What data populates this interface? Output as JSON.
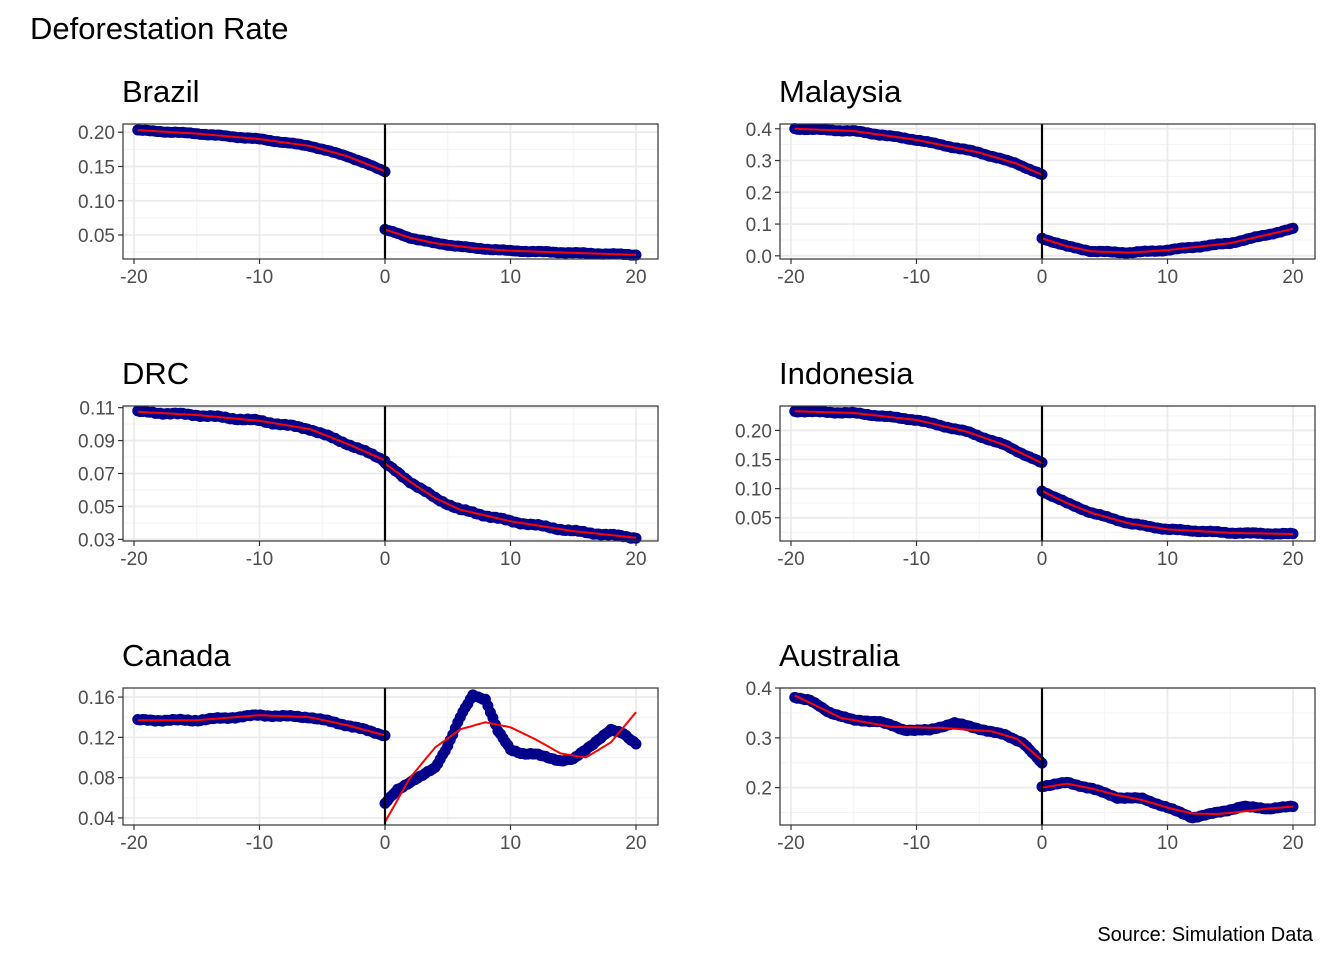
{
  "figure": {
    "title": "Deforestation Rate",
    "caption": "Source: Simulation Data"
  },
  "colors": {
    "points": "#00008b",
    "fit": "#ff0000",
    "cutoff": "#000000",
    "grid": "#ebebeb",
    "border": "#333333",
    "tick_text": "#4d4d4d"
  },
  "chart_data": [
    {
      "type": "scatter",
      "title": "Brazil",
      "xlim": [
        -20,
        20
      ],
      "ylim": [
        0.015,
        0.212
      ],
      "xticks": [
        -20,
        -10,
        0,
        10,
        20
      ],
      "xtick_labels": [
        "-20",
        "-10",
        "0",
        "10",
        "20"
      ],
      "yticks": [
        0.05,
        0.1,
        0.15,
        0.2
      ],
      "ytick_labels": [
        "0.05",
        "0.10",
        "0.15",
        "0.20"
      ],
      "cutoff": 0,
      "left_curve": {
        "x": [
          -19.7,
          -15,
          -10,
          -6,
          -3,
          0
        ],
        "y": [
          0.203,
          0.198,
          0.19,
          0.18,
          0.165,
          0.143
        ]
      },
      "right_curve": {
        "x": [
          0,
          2,
          4,
          7,
          10,
          15,
          20
        ],
        "y": [
          0.058,
          0.046,
          0.038,
          0.031,
          0.027,
          0.024,
          0.021
        ]
      },
      "noise": 0.0008
    },
    {
      "type": "scatter",
      "title": "Malaysia",
      "xlim": [
        -20,
        20
      ],
      "ylim": [
        -0.01,
        0.415
      ],
      "xticks": [
        -20,
        -10,
        0,
        10,
        20
      ],
      "xtick_labels": [
        "-20",
        "-10",
        "0",
        "10",
        "20"
      ],
      "yticks": [
        0.0,
        0.1,
        0.2,
        0.3,
        0.4
      ],
      "ytick_labels": [
        "0.0",
        "0.1",
        "0.2",
        "0.3",
        "0.4"
      ],
      "cutoff": 0,
      "left_curve": {
        "x": [
          -19.7,
          -15,
          -10,
          -5,
          -2,
          0
        ],
        "y": [
          0.4,
          0.393,
          0.365,
          0.325,
          0.29,
          0.255
        ]
      },
      "right_curve": {
        "x": [
          0,
          2,
          4,
          7,
          10,
          15,
          20
        ],
        "y": [
          0.055,
          0.03,
          0.014,
          0.01,
          0.018,
          0.04,
          0.085
        ]
      },
      "noise": 0.002
    },
    {
      "type": "scatter",
      "title": "DRC",
      "xlim": [
        -20,
        20
      ],
      "ylim": [
        0.029,
        0.111
      ],
      "xticks": [
        -20,
        -10,
        0,
        10,
        20
      ],
      "xtick_labels": [
        "-20",
        "-10",
        "0",
        "10",
        "20"
      ],
      "yticks": [
        0.03,
        0.05,
        0.07,
        0.09,
        0.11
      ],
      "ytick_labels": [
        "0.03",
        "0.05",
        "0.07",
        "0.09",
        "0.11"
      ],
      "cutoff": 0,
      "left_curve": {
        "x": [
          -19.7,
          -15,
          -10,
          -6,
          -3,
          0
        ],
        "y": [
          0.1075,
          0.1055,
          0.102,
          0.097,
          0.088,
          0.078
        ]
      },
      "right_curve": {
        "x": [
          0,
          2,
          4,
          6,
          10,
          15,
          20
        ],
        "y": [
          0.076,
          0.065,
          0.055,
          0.048,
          0.041,
          0.035,
          0.031
        ]
      },
      "noise": 0.0007
    },
    {
      "type": "scatter",
      "title": "Indonesia",
      "xlim": [
        -20,
        20
      ],
      "ylim": [
        0.01,
        0.242
      ],
      "xticks": [
        -20,
        -10,
        0,
        10,
        20
      ],
      "xtick_labels": [
        "-20",
        "-10",
        "0",
        "10",
        "20"
      ],
      "yticks": [
        0.05,
        0.1,
        0.15,
        0.2
      ],
      "ytick_labels": [
        "0.05",
        "0.10",
        "0.15",
        "0.20"
      ],
      "cutoff": 0,
      "left_curve": {
        "x": [
          -19.7,
          -15,
          -10,
          -6,
          -3,
          0
        ],
        "y": [
          0.233,
          0.23,
          0.218,
          0.198,
          0.175,
          0.144
        ]
      },
      "right_curve": {
        "x": [
          0,
          2,
          4,
          7,
          10,
          15,
          20
        ],
        "y": [
          0.096,
          0.075,
          0.058,
          0.04,
          0.03,
          0.024,
          0.022
        ]
      },
      "noise": 0.0012
    },
    {
      "type": "scatter",
      "title": "Canada",
      "xlim": [
        -20,
        20
      ],
      "ylim": [
        0.033,
        0.169
      ],
      "xticks": [
        -20,
        -10,
        0,
        10,
        20
      ],
      "xtick_labels": [
        "-20",
        "-10",
        "0",
        "10",
        "20"
      ],
      "yticks": [
        0.04,
        0.08,
        0.12,
        0.16
      ],
      "ytick_labels": [
        "0.04",
        "0.08",
        "0.12",
        "0.16"
      ],
      "cutoff": 0,
      "left_curve": {
        "x": [
          -19.7,
          -15,
          -10,
          -6,
          -3,
          0
        ],
        "y": [
          0.137,
          0.137,
          0.142,
          0.14,
          0.132,
          0.122
        ]
      },
      "right_points": {
        "x": [
          0,
          1,
          2,
          3,
          4,
          5,
          6,
          7,
          8,
          9,
          10,
          11,
          12,
          13,
          14,
          15,
          16,
          17,
          18,
          19,
          20
        ],
        "y": [
          0.054,
          0.068,
          0.076,
          0.082,
          0.09,
          0.112,
          0.14,
          0.162,
          0.158,
          0.126,
          0.108,
          0.104,
          0.103,
          0.1,
          0.097,
          0.098,
          0.108,
          0.118,
          0.127,
          0.124,
          0.114
        ]
      },
      "right_fit": {
        "x": [
          0,
          2,
          4,
          6,
          8,
          10,
          12,
          14,
          16,
          18,
          20
        ],
        "y": [
          0.036,
          0.08,
          0.11,
          0.128,
          0.135,
          0.13,
          0.118,
          0.104,
          0.1,
          0.115,
          0.145
        ]
      },
      "noise": 0.001
    },
    {
      "type": "scatter",
      "title": "Australia",
      "xlim": [
        -20,
        20
      ],
      "ylim": [
        0.125,
        0.4
      ],
      "xticks": [
        -20,
        -10,
        0,
        10,
        20
      ],
      "xtick_labels": [
        "-20",
        "-10",
        "0",
        "10",
        "20"
      ],
      "yticks": [
        0.2,
        0.3,
        0.4
      ],
      "ytick_labels": [
        "0.2",
        "0.3",
        "0.4"
      ],
      "cutoff": 0,
      "left_points": {
        "x": [
          -19.7,
          -18.5,
          -17,
          -15,
          -13,
          -11,
          -9,
          -7,
          -5,
          -3,
          -1.5,
          0
        ],
        "y": [
          0.382,
          0.375,
          0.352,
          0.335,
          0.333,
          0.316,
          0.315,
          0.33,
          0.318,
          0.306,
          0.29,
          0.248
        ]
      },
      "left_fit": {
        "x": [
          -19.7,
          -16,
          -12,
          -8,
          -4,
          -2,
          0
        ],
        "y": [
          0.385,
          0.34,
          0.322,
          0.32,
          0.313,
          0.298,
          0.255
        ]
      },
      "right_points": {
        "x": [
          0,
          2,
          4,
          6,
          8,
          10,
          12,
          14,
          16,
          18,
          20
        ],
        "y": [
          0.203,
          0.21,
          0.198,
          0.18,
          0.178,
          0.16,
          0.14,
          0.15,
          0.162,
          0.158,
          0.162
        ]
      },
      "right_fit": {
        "x": [
          0,
          2,
          4,
          6,
          8,
          10,
          12,
          14,
          16,
          18,
          20
        ],
        "y": [
          0.2,
          0.208,
          0.198,
          0.185,
          0.175,
          0.16,
          0.148,
          0.147,
          0.152,
          0.158,
          0.162
        ]
      },
      "noise": 0.0015
    }
  ]
}
